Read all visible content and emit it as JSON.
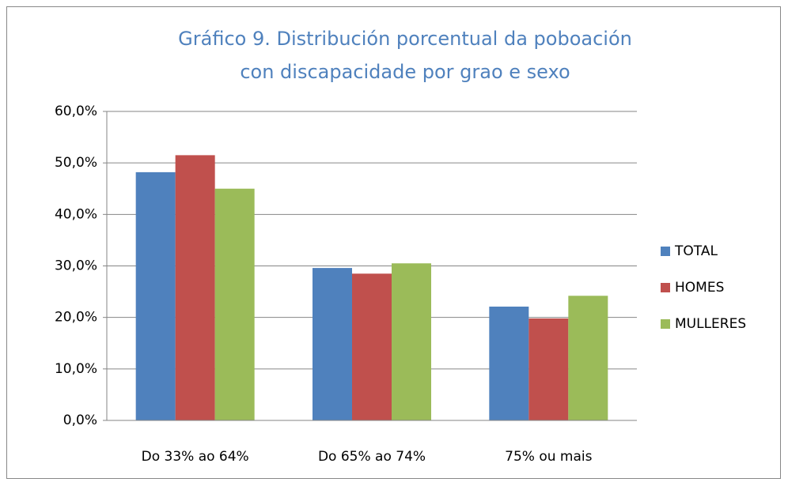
{
  "chart_data": {
    "type": "bar",
    "title": "Gráfico 9. Distribución porcentual da poboación con discapacidade por grao e sexo",
    "categories": [
      "Do 33% ao 64%",
      "Do 65% ao 74%",
      "75% ou mais"
    ],
    "series": [
      {
        "name": "TOTAL",
        "color": "#4f81bd",
        "values": [
          48.2,
          29.6,
          22.1
        ]
      },
      {
        "name": "HOMES",
        "color": "#c0504d",
        "values": [
          51.5,
          28.5,
          19.8
        ]
      },
      {
        "name": "MULLERES",
        "color": "#9bbb59",
        "values": [
          45.0,
          30.5,
          24.2
        ]
      }
    ],
    "ylim": [
      0,
      60
    ],
    "yticks": [
      {
        "value": 0,
        "label": "0,0%"
      },
      {
        "value": 10,
        "label": "10,0%"
      },
      {
        "value": 20,
        "label": "20,0%"
      },
      {
        "value": 30,
        "label": "30,0%"
      },
      {
        "value": 40,
        "label": "40,0%"
      },
      {
        "value": 50,
        "label": "50,0%"
      },
      {
        "value": 60,
        "label": "60,0%"
      }
    ],
    "grid": true,
    "legend": "right"
  }
}
